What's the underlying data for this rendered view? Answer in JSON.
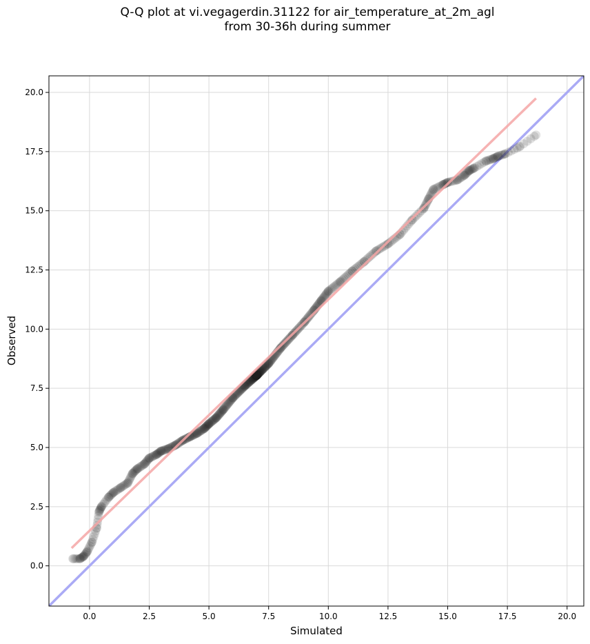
{
  "chart_data": {
    "type": "scatter",
    "title": "Q-Q plot at vi.vegagerdin.31122 for air_temperature_at_2m_agl",
    "subtitle": "from 30-36h during summer",
    "xlabel": "Simulated",
    "ylabel": "Observed",
    "xlim": [
      -1.7,
      20.7
    ],
    "ylim": [
      -1.7,
      20.7
    ],
    "xticks": [
      0.0,
      2.5,
      5.0,
      7.5,
      10.0,
      12.5,
      15.0,
      17.5,
      20.0
    ],
    "yticks": [
      0.0,
      2.5,
      5.0,
      7.5,
      10.0,
      12.5,
      15.0,
      17.5,
      20.0
    ],
    "xtick_labels": [
      "0.0",
      "2.5",
      "5.0",
      "7.5",
      "10.0",
      "12.5",
      "15.0",
      "17.5",
      "20.0"
    ],
    "ytick_labels": [
      "0.0",
      "2.5",
      "5.0",
      "7.5",
      "10.0",
      "12.5",
      "15.0",
      "17.5",
      "20.0"
    ],
    "grid": true,
    "identity_line": {
      "color": "#aaaaf5",
      "from": [
        -1.7,
        -1.7
      ],
      "to": [
        20.7,
        20.7
      ]
    },
    "fit_line": {
      "color": "#f4a6a6",
      "from": [
        -0.75,
        0.75
      ],
      "to": [
        18.7,
        19.75
      ]
    },
    "point_color": "#222222",
    "quantile_knots": {
      "x": [
        -0.7,
        -0.4,
        -0.25,
        -0.1,
        0.1,
        0.3,
        0.4,
        0.5,
        0.8,
        1.0,
        1.3,
        1.6,
        1.8,
        2.0,
        2.3,
        2.5,
        2.8,
        3.0,
        3.3,
        3.6,
        3.9,
        4.2,
        4.5,
        4.8,
        5.0,
        5.3,
        5.6,
        6.0,
        6.5,
        7.0,
        7.5,
        8.0,
        8.5,
        9.0,
        9.4,
        9.7,
        10.0,
        10.5,
        11.0,
        11.5,
        12.0,
        12.5,
        13.0,
        13.5,
        14.0,
        14.2,
        14.4,
        14.8,
        15.0,
        15.4,
        15.7,
        15.9,
        16.1,
        16.6,
        16.9,
        17.1,
        17.4,
        18.0,
        18.7
      ],
      "y": [
        0.3,
        0.3,
        0.4,
        0.6,
        1.0,
        1.6,
        2.3,
        2.5,
        2.9,
        3.1,
        3.3,
        3.5,
        3.9,
        4.1,
        4.3,
        4.55,
        4.7,
        4.85,
        4.95,
        5.1,
        5.3,
        5.45,
        5.6,
        5.8,
        6.0,
        6.25,
        6.6,
        7.1,
        7.6,
        8.05,
        8.55,
        9.2,
        9.75,
        10.3,
        10.8,
        11.2,
        11.6,
        12.0,
        12.45,
        12.85,
        13.3,
        13.6,
        14.0,
        14.6,
        15.1,
        15.5,
        15.9,
        16.1,
        16.2,
        16.3,
        16.5,
        16.7,
        16.8,
        17.1,
        17.2,
        17.3,
        17.4,
        17.7,
        18.2
      ]
    }
  }
}
